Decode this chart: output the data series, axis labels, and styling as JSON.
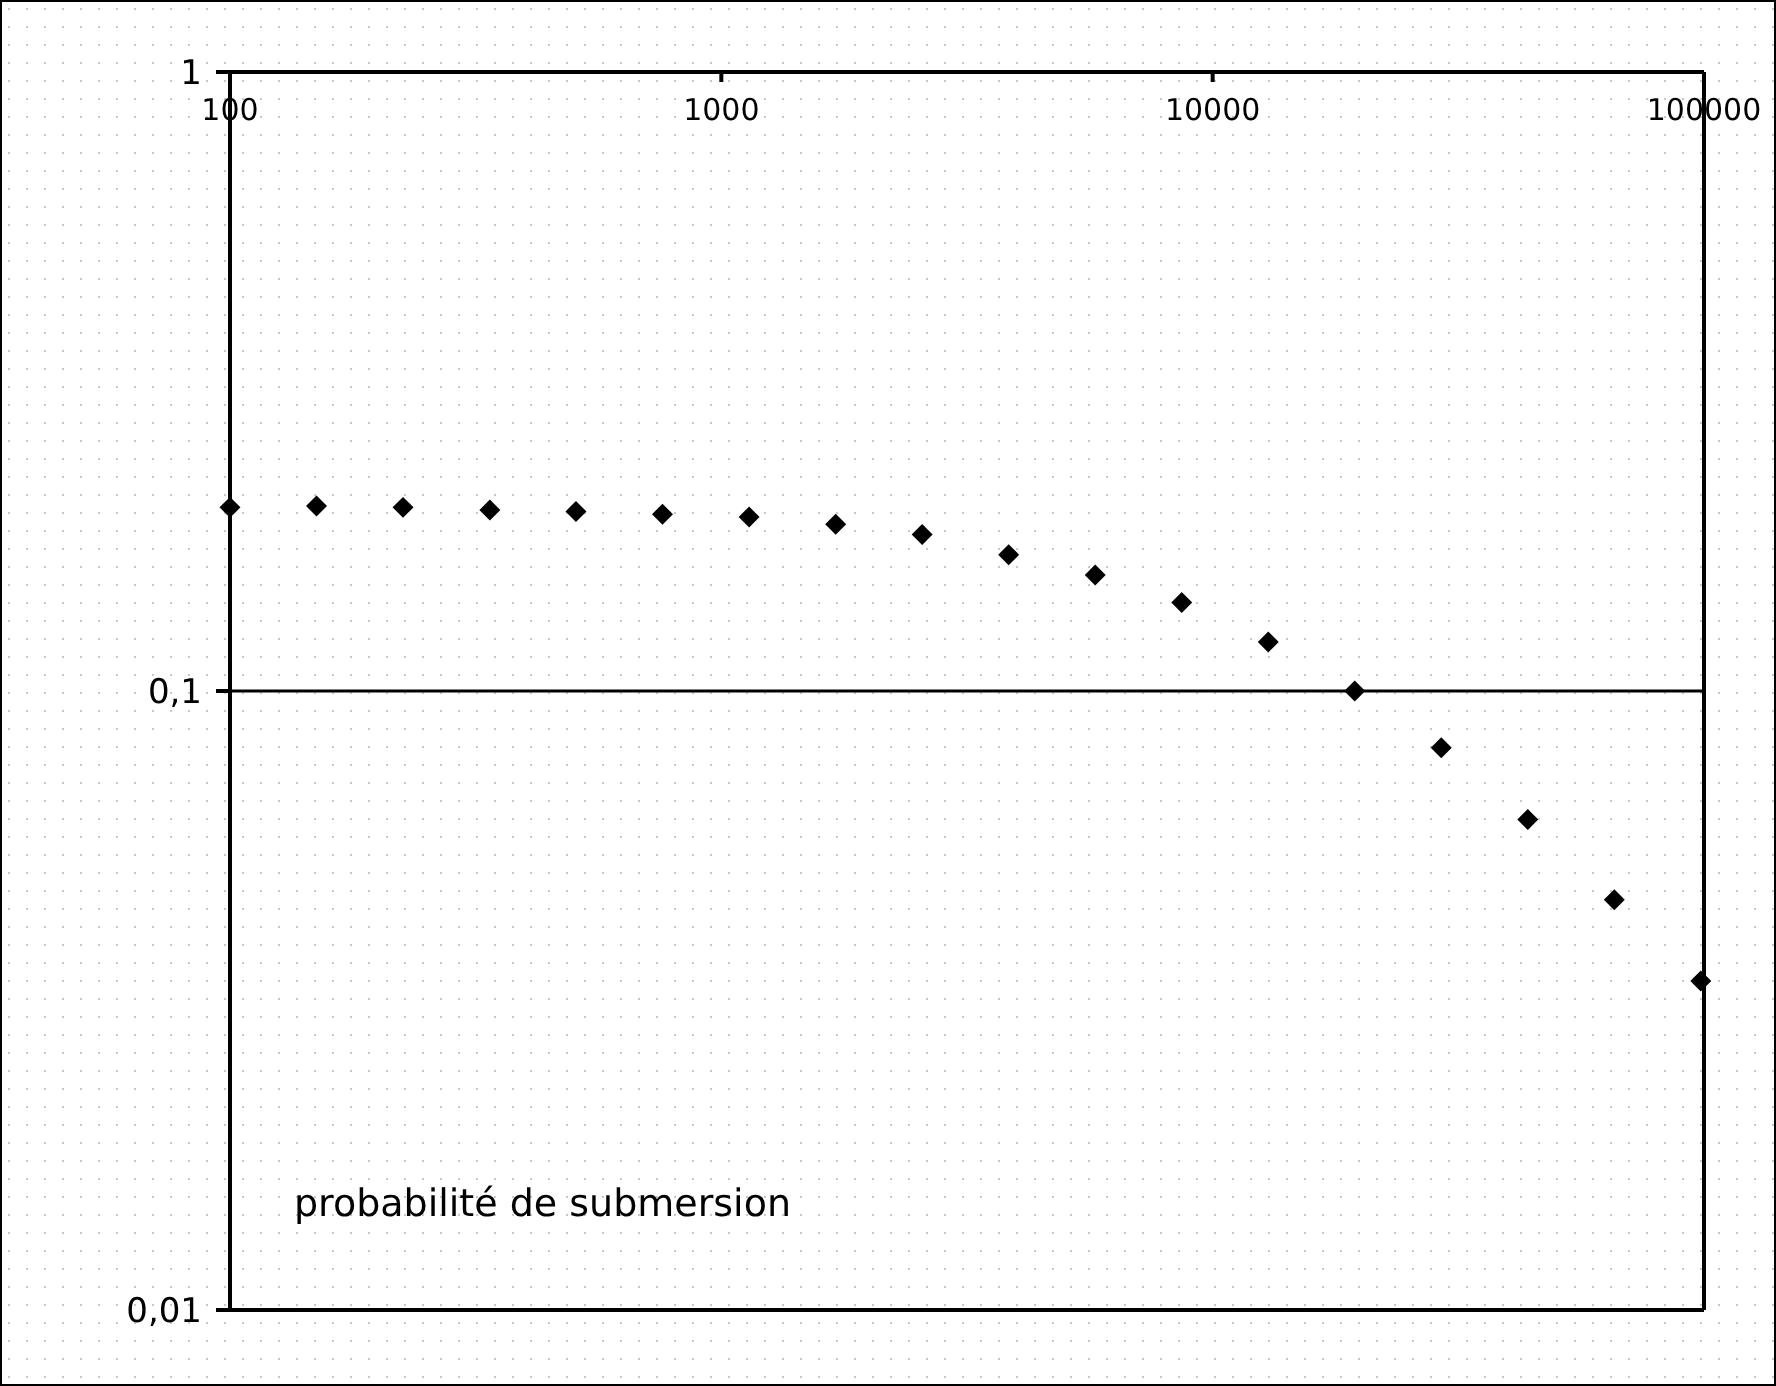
{
  "chart_data": {
    "type": "scatter",
    "x": [
      100,
      150,
      225,
      338,
      506,
      759,
      1139,
      1709,
      2563,
      3844,
      5767,
      8650,
      12975,
      19462,
      29193,
      43789,
      65684,
      98526
    ],
    "series": [
      {
        "color": "#000000",
        "values": [
          0.198,
          0.199,
          0.198,
          0.196,
          0.195,
          0.193,
          0.191,
          0.186,
          0.179,
          0.166,
          0.154,
          0.139,
          0.12,
          0.1,
          0.081,
          0.062,
          0.046,
          0.034
        ]
      }
    ],
    "xlim": [
      100,
      100000
    ],
    "xticks": [
      100,
      1000,
      10000,
      100000
    ],
    "ylim": [
      0.01,
      1
    ],
    "yticks": [
      {
        "value": 0.01,
        "label": "0,01"
      },
      {
        "value": 0.1,
        "label": "0,1"
      },
      1
    ],
    "log": "xy",
    "grid": "y",
    "marker": "diamond",
    "annotations": [
      "probabilité de submersion"
    ]
  }
}
